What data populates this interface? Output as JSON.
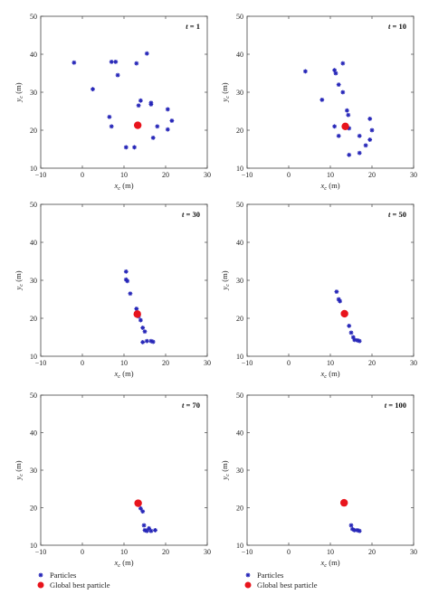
{
  "chart_data": [
    {
      "type": "scatter",
      "panel_label": "t = 1",
      "xlabel": "x_c (m)",
      "ylabel": "y_c (m)",
      "xlim": [
        -10,
        30
      ],
      "ylim": [
        10,
        50
      ],
      "xticks": [
        "−10",
        "0",
        "10",
        "20",
        "30"
      ],
      "yticks": [
        "10",
        "20",
        "30",
        "40",
        "50"
      ],
      "series": [
        {
          "name": "Particles",
          "color": "#2626b8",
          "marker": "asterisk",
          "points": [
            [
              -2,
              37.8
            ],
            [
              2.5,
              30.8
            ],
            [
              7,
              38
            ],
            [
              8,
              38
            ],
            [
              8.5,
              34.5
            ],
            [
              13,
              37.6
            ],
            [
              15.5,
              40.2
            ],
            [
              6.5,
              23.5
            ],
            [
              7,
              21
            ],
            [
              13.5,
              26.5
            ],
            [
              14,
              27.8
            ],
            [
              16.5,
              27.2
            ],
            [
              16.5,
              26.8
            ],
            [
              20.5,
              25.5
            ],
            [
              21.5,
              22.5
            ],
            [
              18,
              21
            ],
            [
              20.5,
              20.2
            ],
            [
              17,
              18
            ],
            [
              10.5,
              15.5
            ],
            [
              12.5,
              15.5
            ]
          ]
        },
        {
          "name": "Global best particle",
          "color": "#e8141c",
          "marker": "dot",
          "points": [
            [
              13.3,
              21.3
            ]
          ]
        }
      ]
    },
    {
      "type": "scatter",
      "panel_label": "t = 10",
      "xlabel": "x_c (m)",
      "ylabel": "y_c (m)",
      "xlim": [
        -10,
        30
      ],
      "ylim": [
        10,
        50
      ],
      "xticks": [
        "−10",
        "0",
        "10",
        "20",
        "30"
      ],
      "yticks": [
        "10",
        "20",
        "30",
        "40",
        "50"
      ],
      "series": [
        {
          "name": "Particles",
          "color": "#2626b8",
          "marker": "asterisk",
          "points": [
            [
              4,
              35.5
            ],
            [
              11,
              35.8
            ],
            [
              11.3,
              35
            ],
            [
              13,
              37.6
            ],
            [
              12,
              32
            ],
            [
              8,
              28
            ],
            [
              13,
              30
            ],
            [
              14,
              25.2
            ],
            [
              14.3,
              24
            ],
            [
              19.5,
              23
            ],
            [
              11,
              21
            ],
            [
              12,
              18.5
            ],
            [
              14.5,
              20.5
            ],
            [
              17,
              18.5
            ],
            [
              18.5,
              16
            ],
            [
              19.5,
              17.5
            ],
            [
              20,
              20
            ],
            [
              17,
              14
            ],
            [
              14.5,
              13.5
            ]
          ]
        },
        {
          "name": "Global best particle",
          "color": "#e8141c",
          "marker": "dot",
          "points": [
            [
              13.6,
              21
            ]
          ]
        }
      ]
    },
    {
      "type": "scatter",
      "panel_label": "t = 30",
      "xlabel": "x_c (m)",
      "ylabel": "y_c (m)",
      "xlim": [
        -10,
        30
      ],
      "ylim": [
        10,
        50
      ],
      "xticks": [
        "−10",
        "0",
        "10",
        "20",
        "30"
      ],
      "yticks": [
        "10",
        "20",
        "30",
        "40",
        "50"
      ],
      "series": [
        {
          "name": "Particles",
          "color": "#2626b8",
          "marker": "asterisk",
          "points": [
            [
              10.5,
              32.3
            ],
            [
              10.5,
              30.2
            ],
            [
              10.8,
              29.8
            ],
            [
              11.5,
              26.5
            ],
            [
              13,
              22.5
            ],
            [
              13.5,
              20.5
            ],
            [
              14,
              19.5
            ],
            [
              14.5,
              17.5
            ],
            [
              15,
              16.5
            ],
            [
              14.5,
              13.7
            ],
            [
              15.5,
              14
            ],
            [
              16.5,
              14
            ],
            [
              17,
              13.8
            ]
          ]
        },
        {
          "name": "Global best particle",
          "color": "#e8141c",
          "marker": "dot",
          "points": [
            [
              13.2,
              21.1
            ]
          ]
        }
      ]
    },
    {
      "type": "scatter",
      "panel_label": "t = 50",
      "xlabel": "x_c (m)",
      "ylabel": "y_c (m)",
      "xlim": [
        -10,
        30
      ],
      "ylim": [
        10,
        50
      ],
      "xticks": [
        "−10",
        "0",
        "10",
        "20",
        "30"
      ],
      "yticks": [
        "10",
        "20",
        "30",
        "40",
        "50"
      ],
      "series": [
        {
          "name": "Particles",
          "color": "#2626b8",
          "marker": "asterisk",
          "points": [
            [
              11.5,
              27
            ],
            [
              12,
              25
            ],
            [
              12.3,
              24.5
            ],
            [
              14.5,
              18
            ],
            [
              15,
              16.2
            ],
            [
              15.5,
              15
            ],
            [
              15.8,
              14.3
            ],
            [
              16.5,
              14.2
            ],
            [
              17,
              14
            ]
          ]
        },
        {
          "name": "Global best particle",
          "color": "#e8141c",
          "marker": "dot",
          "points": [
            [
              13.4,
              21.2
            ]
          ]
        }
      ]
    },
    {
      "type": "scatter",
      "panel_label": "t = 70",
      "xlabel": "x_c (m)",
      "ylabel": "y_c (m)",
      "xlim": [
        -10,
        30
      ],
      "ylim": [
        10,
        50
      ],
      "xticks": [
        "−10",
        "0",
        "10",
        "20",
        "30"
      ],
      "yticks": [
        "10",
        "20",
        "30",
        "40",
        "50"
      ],
      "series": [
        {
          "name": "Particles",
          "color": "#2626b8",
          "marker": "asterisk",
          "points": [
            [
              14,
              19.8
            ],
            [
              14.5,
              19
            ],
            [
              14.8,
              15.3
            ],
            [
              15,
              14
            ],
            [
              15.5,
              13.8
            ],
            [
              16,
              14.5
            ],
            [
              16.5,
              13.8
            ],
            [
              17.5,
              14
            ]
          ]
        },
        {
          "name": "Global best particle",
          "color": "#e8141c",
          "marker": "dot",
          "points": [
            [
              13.4,
              21.2
            ]
          ]
        }
      ]
    },
    {
      "type": "scatter",
      "panel_label": "t = 100",
      "xlabel": "x_c (m)",
      "ylabel": "y_c (m)",
      "xlim": [
        -10,
        30
      ],
      "ylim": [
        10,
        50
      ],
      "xticks": [
        "−10",
        "0",
        "10",
        "20",
        "30"
      ],
      "yticks": [
        "10",
        "20",
        "30",
        "40",
        "50"
      ],
      "series": [
        {
          "name": "Particles",
          "color": "#2626b8",
          "marker": "asterisk",
          "points": [
            [
              15,
              15.3
            ],
            [
              15.3,
              14.3
            ],
            [
              15.8,
              14
            ],
            [
              16.5,
              14
            ],
            [
              17,
              13.8
            ]
          ]
        },
        {
          "name": "Global best particle",
          "color": "#e8141c",
          "marker": "dot",
          "points": [
            [
              13.3,
              21.3
            ]
          ]
        }
      ]
    }
  ],
  "legend": {
    "particles_label": "Particles",
    "best_label": "Global best particle"
  }
}
